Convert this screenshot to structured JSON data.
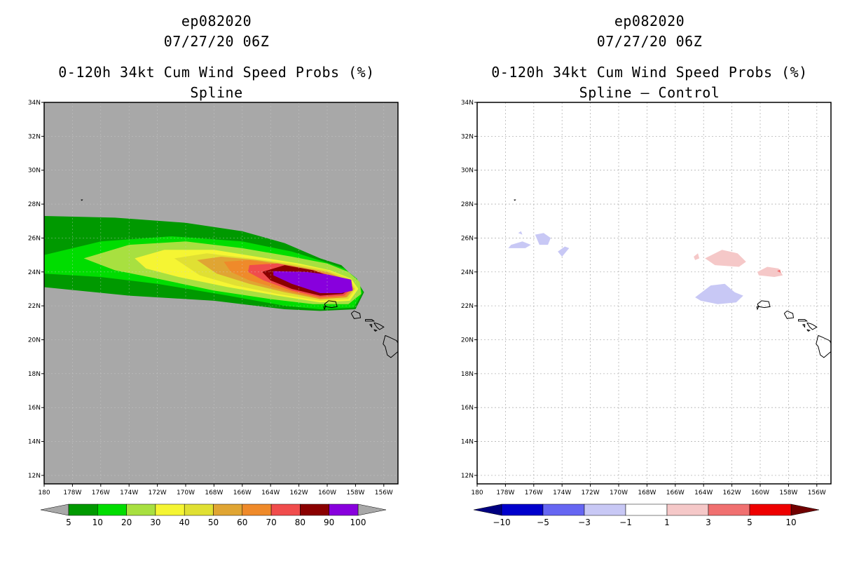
{
  "panels": [
    {
      "storm_id": "ep082020",
      "datetime": "07/27/20 06Z",
      "product": "0-120h 34kt Cum Wind Speed Probs (%)",
      "subtitle": "Spline"
    },
    {
      "storm_id": "ep082020",
      "datetime": "07/27/20 06Z",
      "product": "0-120h 34kt Cum Wind Speed Probs (%)",
      "subtitle": "Spline – Control"
    }
  ],
  "chart_data": [
    {
      "type": "heatmap",
      "title": "0-120h 34kt Cum Wind Speed Probs (%) - Spline",
      "xlim": [
        -180,
        -155
      ],
      "ylim": [
        11.5,
        34
      ],
      "x_tick_values": [
        -180,
        -178,
        -176,
        -174,
        -172,
        -170,
        -168,
        -166,
        -164,
        -162,
        -160,
        -158,
        -156
      ],
      "x_tick_labels": [
        "180",
        "178W",
        "176W",
        "174W",
        "172W",
        "170W",
        "168W",
        "166W",
        "164W",
        "162W",
        "160W",
        "158W",
        "156W"
      ],
      "y_tick_values": [
        12,
        14,
        16,
        18,
        20,
        22,
        24,
        26,
        28,
        30,
        32,
        34
      ],
      "y_tick_labels": [
        "12N",
        "14N",
        "16N",
        "18N",
        "20N",
        "22N",
        "24N",
        "26N",
        "28N",
        "30N",
        "32N",
        "34N"
      ],
      "background_color": "#a8a8a8",
      "contours": [
        {
          "level": 5,
          "color": "#009900",
          "points": [
            [
              -180,
              27.3
            ],
            [
              -175,
              27.2
            ],
            [
              -170,
              26.9
            ],
            [
              -166,
              26.4
            ],
            [
              -163,
              25.7
            ],
            [
              -160.5,
              24.8
            ],
            [
              -159,
              24.4
            ],
            [
              -158,
              23.6
            ],
            [
              -157.4,
              22.8
            ],
            [
              -158,
              21.8
            ],
            [
              -160.5,
              21.7
            ],
            [
              -163,
              21.8
            ],
            [
              -168,
              22.3
            ],
            [
              -174,
              22.6
            ],
            [
              -180,
              23.1
            ]
          ]
        },
        {
          "level": 10,
          "color": "#00dd00",
          "points": [
            [
              -180,
              25
            ],
            [
              -176,
              25.8
            ],
            [
              -171,
              26.1
            ],
            [
              -166,
              25.8
            ],
            [
              -162.5,
              25.2
            ],
            [
              -160.2,
              24.6
            ],
            [
              -158.8,
              24.2
            ],
            [
              -157.9,
              23.6
            ],
            [
              -157.5,
              22.8
            ],
            [
              -158.1,
              21.9
            ],
            [
              -160.5,
              21.8
            ],
            [
              -163,
              22
            ],
            [
              -167,
              22.6
            ],
            [
              -172,
              23.3
            ],
            [
              -176,
              23.7
            ],
            [
              -180,
              23.9
            ]
          ]
        },
        {
          "level": 20,
          "color": "#a8e040",
          "points": [
            [
              -177.2,
              24.8
            ],
            [
              -174,
              25.6
            ],
            [
              -170,
              25.8
            ],
            [
              -166,
              25.4
            ],
            [
              -162.5,
              24.9
            ],
            [
              -160,
              24.5
            ],
            [
              -158.5,
              24
            ],
            [
              -157.7,
              23.4
            ],
            [
              -157.6,
              22.7
            ],
            [
              -158.5,
              22.1
            ],
            [
              -161,
              22.1
            ],
            [
              -164,
              22.4
            ],
            [
              -168,
              22.9
            ],
            [
              -172,
              23.6
            ],
            [
              -175,
              24.1
            ]
          ]
        },
        {
          "level": 30,
          "color": "#f5f533",
          "points": [
            [
              -173.6,
              24.8
            ],
            [
              -171.5,
              25.3
            ],
            [
              -168,
              25.3
            ],
            [
              -165,
              24.9
            ],
            [
              -162,
              24.5
            ],
            [
              -159.8,
              24.1
            ],
            [
              -158.3,
              23.6
            ],
            [
              -157.8,
              23
            ],
            [
              -158.4,
              22.3
            ],
            [
              -160.5,
              22.2
            ],
            [
              -163.5,
              22.6
            ],
            [
              -167,
              23.1
            ],
            [
              -170.5,
              23.7
            ],
            [
              -172.8,
              24.2
            ]
          ]
        },
        {
          "level": 40,
          "color": "#e0e033",
          "points": [
            [
              -170.8,
              24.8
            ],
            [
              -168.5,
              25.1
            ],
            [
              -165.5,
              24.8
            ],
            [
              -162.5,
              24.5
            ],
            [
              -160,
              24.1
            ],
            [
              -158.4,
              23.6
            ],
            [
              -158,
              23
            ],
            [
              -158.5,
              22.4
            ],
            [
              -160.5,
              22.3
            ],
            [
              -163.5,
              22.7
            ],
            [
              -166.5,
              23.2
            ],
            [
              -169,
              23.8
            ]
          ]
        },
        {
          "level": 50,
          "color": "#e0a533",
          "points": [
            [
              -169.2,
              24.7
            ],
            [
              -167.5,
              24.9
            ],
            [
              -165,
              24.7
            ],
            [
              -162.5,
              24.4
            ],
            [
              -160,
              24
            ],
            [
              -158.5,
              23.5
            ],
            [
              -158.1,
              23
            ],
            [
              -158.6,
              22.5
            ],
            [
              -160.5,
              22.4
            ],
            [
              -163,
              22.8
            ],
            [
              -165.5,
              23.3
            ],
            [
              -167.8,
              23.9
            ]
          ]
        },
        {
          "level": 60,
          "color": "#ef8a2a",
          "points": [
            [
              -167.3,
              24.6
            ],
            [
              -165.5,
              24.7
            ],
            [
              -163,
              24.4
            ],
            [
              -160.5,
              24
            ],
            [
              -158.6,
              23.5
            ],
            [
              -158.2,
              23
            ],
            [
              -158.7,
              22.5
            ],
            [
              -160.5,
              22.4
            ],
            [
              -163,
              22.9
            ],
            [
              -165.5,
              23.5
            ],
            [
              -166.8,
              24
            ]
          ]
        },
        {
          "level": 70,
          "color": "#f04c4c",
          "points": [
            [
              -165.5,
              24.4
            ],
            [
              -163.5,
              24.5
            ],
            [
              -161,
              24.1
            ],
            [
              -159,
              23.6
            ],
            [
              -158.3,
              23
            ],
            [
              -158.8,
              22.6
            ],
            [
              -160.5,
              22.5
            ],
            [
              -162.5,
              22.9
            ],
            [
              -164.5,
              23.5
            ],
            [
              -165.6,
              24
            ]
          ]
        },
        {
          "level": 80,
          "color": "#8a0000",
          "points": [
            [
              -164.6,
              24
            ],
            [
              -163,
              24.4
            ],
            [
              -161,
              24.1
            ],
            [
              -159.3,
              23.6
            ],
            [
              -158.4,
              23
            ],
            [
              -158.9,
              22.7
            ],
            [
              -160.5,
              22.6
            ],
            [
              -162.5,
              23
            ],
            [
              -164,
              23.5
            ]
          ]
        },
        {
          "level": 90,
          "color": "#8800dd",
          "points": [
            [
              -163.8,
              24.05
            ],
            [
              -161.5,
              24
            ],
            [
              -160,
              23.85
            ],
            [
              -158.3,
              23.55
            ],
            [
              -158.2,
              22.9
            ],
            [
              -159,
              22.75
            ],
            [
              -160.5,
              22.75
            ],
            [
              -162.5,
              23.3
            ],
            [
              -163.8,
              23.8
            ]
          ]
        }
      ],
      "colorbar": {
        "levels": [
          "5",
          "10",
          "20",
          "30",
          "40",
          "50",
          "60",
          "70",
          "80",
          "90",
          "100"
        ],
        "colors": [
          "#009900",
          "#00dd00",
          "#a8e040",
          "#f5f533",
          "#e0e033",
          "#e0a533",
          "#ef8a2a",
          "#f04c4c",
          "#8a0000",
          "#8800dd"
        ],
        "under_color": "#a8a8a8",
        "over_color": "#a8a8a8"
      }
    },
    {
      "type": "heatmap",
      "title": "0-120h 34kt Cum Wind Speed Probs (%) - Spline – Control",
      "xlim": [
        -180,
        -155
      ],
      "ylim": [
        11.5,
        34
      ],
      "x_tick_values": [
        -180,
        -178,
        -176,
        -174,
        -172,
        -170,
        -168,
        -166,
        -164,
        -162,
        -160,
        -158,
        -156
      ],
      "x_tick_labels": [
        "180",
        "178W",
        "176W",
        "174W",
        "172W",
        "170W",
        "168W",
        "166W",
        "164W",
        "162W",
        "160W",
        "158W",
        "156W"
      ],
      "y_tick_values": [
        12,
        14,
        16,
        18,
        20,
        22,
        24,
        26,
        28,
        30,
        32,
        34
      ],
      "y_tick_labels": [
        "12N",
        "14N",
        "16N",
        "18N",
        "20N",
        "22N",
        "24N",
        "26N",
        "28N",
        "30N",
        "32N",
        "34N"
      ],
      "background_color": "#ffffff",
      "grid": true,
      "contours": [
        {
          "level": -1,
          "color": "#c8c8f5",
          "points": [
            [
              -177.6,
              25.6
            ],
            [
              -176.8,
              25.8
            ],
            [
              -176.2,
              25.6
            ],
            [
              -176.6,
              25.4
            ],
            [
              -177.8,
              25.4
            ]
          ]
        },
        {
          "level": -1,
          "color": "#c8c8f5",
          "points": [
            [
              -175.9,
              26.2
            ],
            [
              -175.3,
              26.3
            ],
            [
              -174.8,
              26
            ],
            [
              -175,
              25.6
            ],
            [
              -175.6,
              25.6
            ]
          ]
        },
        {
          "level": -1,
          "color": "#c8c8f5",
          "points": [
            [
              -174.3,
              25.2
            ],
            [
              -173.8,
              25.5
            ],
            [
              -173.5,
              25.4
            ],
            [
              -174,
              24.9
            ]
          ]
        },
        {
          "level": -1,
          "color": "#c8c8f5",
          "points": [
            [
              -177.1,
              26.3
            ],
            [
              -176.9,
              26.4
            ],
            [
              -176.8,
              26.2
            ]
          ]
        },
        {
          "level": -1,
          "color": "#c8c8f5",
          "points": [
            [
              -164.6,
              22.5
            ],
            [
              -163.5,
              23.2
            ],
            [
              -162.5,
              23.3
            ],
            [
              -161.8,
              22.8
            ],
            [
              -161.2,
              22.6
            ],
            [
              -161.7,
              22.2
            ],
            [
              -163,
              22.1
            ],
            [
              -164.2,
              22.3
            ]
          ]
        },
        {
          "level": 1,
          "color": "#f5c8c8",
          "points": [
            [
              -163.9,
              24.8
            ],
            [
              -162.7,
              25.3
            ],
            [
              -161.6,
              25.1
            ],
            [
              -161,
              24.6
            ],
            [
              -161.5,
              24.3
            ],
            [
              -163.2,
              24.4
            ]
          ]
        },
        {
          "level": 1,
          "color": "#f5c8c8",
          "points": [
            [
              -164.7,
              24.9
            ],
            [
              -164.4,
              25.1
            ],
            [
              -164.3,
              24.8
            ],
            [
              -164.6,
              24.7
            ]
          ]
        },
        {
          "level": 1,
          "color": "#f5c8c8",
          "points": [
            [
              -160.2,
              24
            ],
            [
              -159.5,
              24.3
            ],
            [
              -158.7,
              24.2
            ],
            [
              -158.4,
              23.8
            ],
            [
              -159,
              23.7
            ],
            [
              -160.1,
              23.8
            ]
          ]
        },
        {
          "level": 3,
          "color": "#f07070",
          "points": [
            [
              -158.8,
              24.05
            ],
            [
              -158.6,
              24.15
            ],
            [
              -158.55,
              23.95
            ]
          ]
        }
      ],
      "colorbar": {
        "levels": [
          "−10",
          "−5",
          "−3",
          "−1",
          "1",
          "3",
          "5",
          "10"
        ],
        "colors": [
          "#0000cc",
          "#6666f2",
          "#c8c8f5",
          "#ffffff",
          "#f5c8c8",
          "#f07070",
          "#ee0000"
        ],
        "under_color": "#000080",
        "over_color": "#700000"
      }
    }
  ],
  "coastlines": [
    [
      [
        -160.2,
        22.1
      ],
      [
        -159.9,
        22.3
      ],
      [
        -159.4,
        22.25
      ],
      [
        -159.3,
        21.95
      ],
      [
        -159.7,
        21.9
      ],
      [
        -160.1,
        21.95
      ],
      [
        -160.2,
        22.1
      ]
    ],
    [
      [
        -160.25,
        21.95
      ],
      [
        -160.1,
        21.98
      ],
      [
        -160.2,
        21.8
      ],
      [
        -160.25,
        21.95
      ]
    ],
    [
      [
        -158.3,
        21.55
      ],
      [
        -158.1,
        21.7
      ],
      [
        -157.7,
        21.55
      ],
      [
        -157.65,
        21.3
      ],
      [
        -158.1,
        21.25
      ],
      [
        -158.3,
        21.55
      ]
    ],
    [
      [
        -157.3,
        21.2
      ],
      [
        -156.85,
        21.2
      ],
      [
        -156.7,
        21.1
      ],
      [
        -157.3,
        21.1
      ],
      [
        -157.3,
        21.2
      ]
    ],
    [
      [
        -157.0,
        20.9
      ],
      [
        -156.85,
        20.9
      ],
      [
        -156.85,
        20.75
      ],
      [
        -157.0,
        20.9
      ]
    ],
    [
      [
        -156.7,
        21.0
      ],
      [
        -156.45,
        20.95
      ],
      [
        -156.3,
        20.9
      ],
      [
        -156.0,
        20.75
      ],
      [
        -156.3,
        20.6
      ],
      [
        -156.5,
        20.75
      ],
      [
        -156.7,
        21.0
      ]
    ],
    [
      [
        -156.7,
        20.6
      ],
      [
        -156.5,
        20.55
      ],
      [
        -156.6,
        20.5
      ],
      [
        -156.7,
        20.6
      ]
    ],
    [
      [
        -155.9,
        20.25
      ],
      [
        -155.6,
        20.15
      ],
      [
        -155.1,
        19.95
      ],
      [
        -154.8,
        19.5
      ],
      [
        -155.0,
        19.3
      ],
      [
        -155.5,
        18.95
      ],
      [
        -155.75,
        19.1
      ],
      [
        -155.9,
        19.6
      ],
      [
        -156.05,
        19.75
      ],
      [
        -155.9,
        20.25
      ]
    ],
    [
      [
        -177.4,
        28.25
      ],
      [
        -177.3,
        28.25
      ],
      [
        -177.35,
        28.2
      ]
    ]
  ]
}
